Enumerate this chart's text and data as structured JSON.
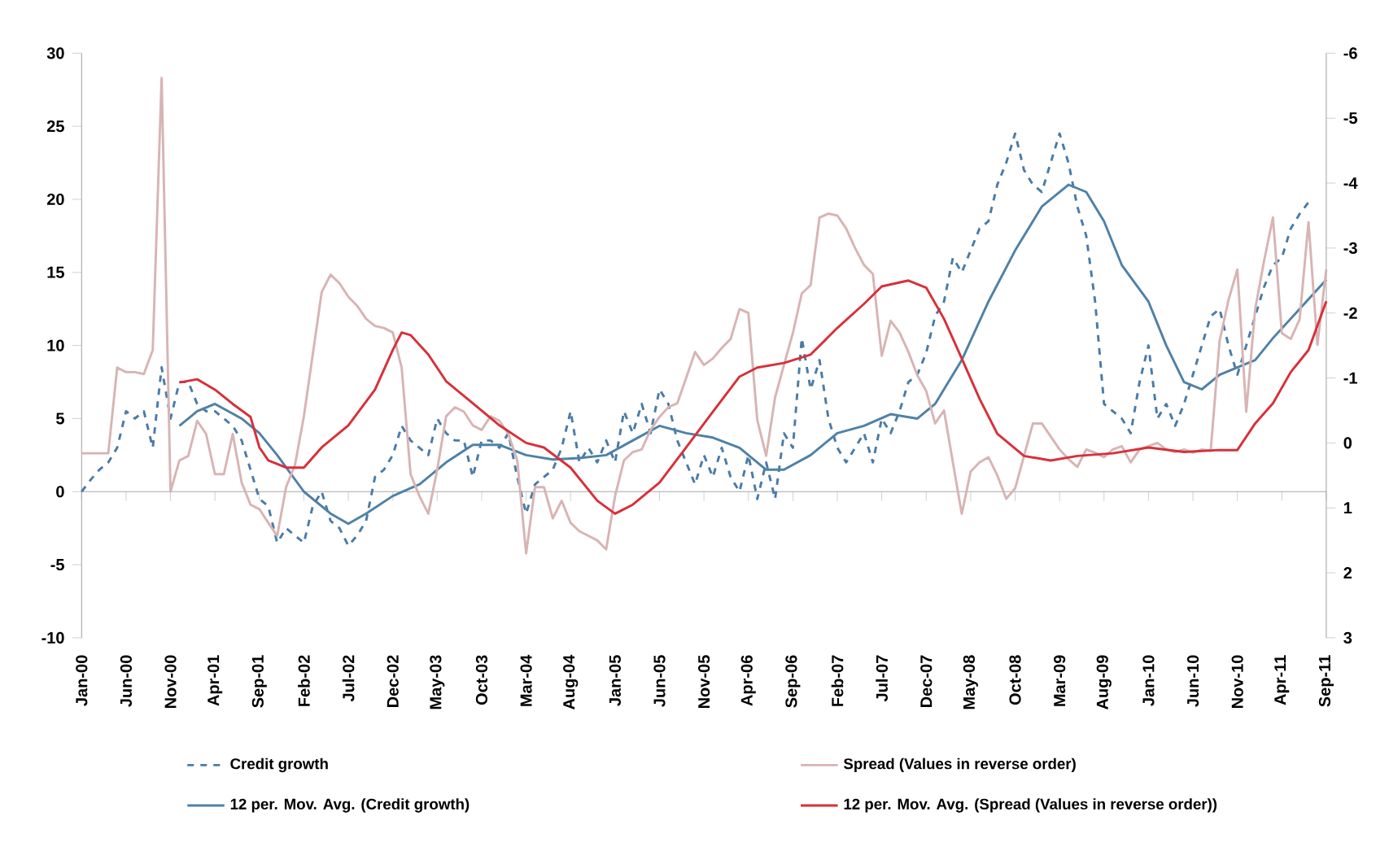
{
  "chart_data": {
    "type": "line",
    "legend": "bottom",
    "x": [
      "2000-01",
      "2000-02",
      "2000-03",
      "2000-04",
      "2000-05",
      "2000-06",
      "2000-07",
      "2000-08",
      "2000-09",
      "2000-10",
      "2000-11",
      "2000-12",
      "2001-01",
      "2001-02",
      "2001-03",
      "2001-04",
      "2001-05",
      "2001-06",
      "2001-07",
      "2001-08",
      "2001-09",
      "2001-10",
      "2001-11",
      "2001-12",
      "2002-01",
      "2002-02",
      "2002-03",
      "2002-04",
      "2002-05",
      "2002-06",
      "2002-07",
      "2002-08",
      "2002-09",
      "2002-10",
      "2002-11",
      "2002-12",
      "2003-01",
      "2003-02",
      "2003-03",
      "2003-04",
      "2003-05",
      "2003-06",
      "2003-07",
      "2003-08",
      "2003-09",
      "2003-10",
      "2003-11",
      "2003-12",
      "2004-01",
      "2004-02",
      "2004-03",
      "2004-04",
      "2004-05",
      "2004-06",
      "2004-07",
      "2004-08",
      "2004-09",
      "2004-10",
      "2004-11",
      "2004-12",
      "2005-01",
      "2005-02",
      "2005-03",
      "2005-04",
      "2005-05",
      "2005-06",
      "2005-07",
      "2005-08",
      "2005-09",
      "2005-10",
      "2005-11",
      "2005-12",
      "2006-01",
      "2006-02",
      "2006-03",
      "2006-04",
      "2006-05",
      "2006-06",
      "2006-07",
      "2006-08",
      "2006-09",
      "2006-10",
      "2006-11",
      "2006-12",
      "2007-01",
      "2007-02",
      "2007-03",
      "2007-04",
      "2007-05",
      "2007-06",
      "2007-07",
      "2007-08",
      "2007-09",
      "2007-10",
      "2007-11",
      "2007-12",
      "2008-01",
      "2008-02",
      "2008-03",
      "2008-04",
      "2008-05",
      "2008-06",
      "2008-07",
      "2008-08",
      "2008-09",
      "2008-10",
      "2008-11",
      "2008-12",
      "2009-01",
      "2009-02",
      "2009-03",
      "2009-04",
      "2009-05",
      "2009-06",
      "2009-07",
      "2009-08",
      "2009-09",
      "2009-10",
      "2009-11",
      "2009-12",
      "2010-01",
      "2010-02",
      "2010-03",
      "2010-04",
      "2010-05",
      "2010-06",
      "2010-07",
      "2010-08",
      "2010-09",
      "2010-10",
      "2010-11",
      "2010-12",
      "2011-01",
      "2011-02",
      "2011-03",
      "2011-04",
      "2011-05",
      "2011-06",
      "2011-07",
      "2011-08",
      "2011-09"
    ],
    "xlim": [
      "2000-01",
      "2011-09"
    ],
    "xticks": [
      {
        "value": "2000-01",
        "label": "Jan-00"
      },
      {
        "value": "2000-06",
        "label": "Jun-00"
      },
      {
        "value": "2000-11",
        "label": "Nov-00"
      },
      {
        "value": "2001-04",
        "label": "Apr-01"
      },
      {
        "value": "2001-09",
        "label": "Sep-01"
      },
      {
        "value": "2002-02",
        "label": "Feb-02"
      },
      {
        "value": "2002-07",
        "label": "Jul-02"
      },
      {
        "value": "2002-12",
        "label": "Dec-02"
      },
      {
        "value": "2003-05",
        "label": "May-03"
      },
      {
        "value": "2003-10",
        "label": "Oct-03"
      },
      {
        "value": "2004-03",
        "label": "Mar-04"
      },
      {
        "value": "2004-08",
        "label": "Aug-04"
      },
      {
        "value": "2005-01",
        "label": "Jan-05"
      },
      {
        "value": "2005-06",
        "label": "Jun-05"
      },
      {
        "value": "2005-11",
        "label": "Nov-05"
      },
      {
        "value": "2006-04",
        "label": "Apr-06"
      },
      {
        "value": "2006-09",
        "label": "Sep-06"
      },
      {
        "value": "2007-02",
        "label": "Feb-07"
      },
      {
        "value": "2007-07",
        "label": "Jul-07"
      },
      {
        "value": "2007-12",
        "label": "Dec-07"
      },
      {
        "value": "2008-05",
        "label": "May-08"
      },
      {
        "value": "2008-10",
        "label": "Oct-08"
      },
      {
        "value": "2009-03",
        "label": "Mar-09"
      },
      {
        "value": "2009-08",
        "label": "Aug-09"
      },
      {
        "value": "2010-01",
        "label": "Jan-10"
      },
      {
        "value": "2010-06",
        "label": "Jun-10"
      },
      {
        "value": "2010-11",
        "label": "Nov-10"
      },
      {
        "value": "2011-04",
        "label": "Apr-11"
      },
      {
        "value": "2011-09",
        "label": "Sep-11"
      }
    ],
    "ylim": [
      -10,
      30
    ],
    "yticks": [
      -10,
      -5,
      0,
      5,
      10,
      15,
      20,
      25,
      30
    ],
    "y2lim": [
      3,
      -6
    ],
    "y2ticks": [
      -6,
      -5,
      -4,
      -3,
      -2,
      -1,
      0,
      1,
      2,
      3
    ],
    "series": [
      {
        "name": "Credit growth",
        "color": "#4a7ba6",
        "line_style": "dashed",
        "values": [
          0,
          0.8,
          1.5,
          2,
          3,
          5.5,
          5,
          5.5,
          3,
          8.5,
          5,
          7.5,
          7.5,
          6,
          5.5,
          5.5,
          5,
          4.5,
          3.5,
          1.5,
          -0.5,
          -1,
          -3.5,
          -2.5,
          -3,
          -3.5,
          -1,
          0,
          -2,
          -2.5,
          -3.7,
          -3,
          -2,
          1,
          1.5,
          2.5,
          4.5,
          3.5,
          3,
          2.5,
          5,
          4,
          3.5,
          3.5,
          1,
          3.5,
          3.5,
          3,
          4,
          1,
          -1.5,
          0.5,
          1,
          1.5,
          3,
          5.5,
          2,
          3,
          2,
          3.5,
          2,
          5.5,
          4,
          6,
          4,
          7,
          6,
          3.5,
          2,
          0.5,
          2.5,
          1,
          3,
          1,
          0,
          2.5,
          -0.5,
          2,
          -0.5,
          4,
          3,
          10.5,
          7,
          9,
          5,
          3,
          2,
          3,
          4,
          2,
          5,
          4,
          5.5,
          7.5,
          8,
          9.5,
          12,
          13,
          16,
          15,
          16.5,
          18,
          18.5,
          21,
          22.5,
          24.5,
          22,
          21,
          20.5,
          22.5,
          24.5,
          22.5,
          19.5,
          17.5,
          13,
          6,
          5.5,
          5,
          4,
          7.5,
          10,
          5,
          6,
          4.5,
          6,
          8,
          10,
          12,
          12.5,
          10,
          8,
          10,
          12,
          14,
          15.5,
          16,
          18,
          19,
          19.8,
          null,
          null
        ]
      },
      {
        "name": "Spread (Values in reverse order)",
        "color": "#d8b4b4",
        "axis": "y2",
        "values": [
          0.16,
          0.16,
          0.16,
          0.16,
          -1.16,
          -1.09,
          -1.09,
          -1.06,
          -1.43,
          -5.62,
          0.75,
          0.27,
          0.2,
          -0.34,
          -0.14,
          0.48,
          0.48,
          -0.14,
          0.61,
          0.95,
          1.02,
          1.23,
          1.43,
          0.68,
          0.34,
          -0.41,
          -1.36,
          -2.32,
          -2.59,
          -2.46,
          -2.25,
          -2.11,
          -1.91,
          -1.8,
          -1.77,
          -1.7,
          -1.16,
          0.48,
          0.82,
          1.09,
          0.41,
          -0.41,
          -0.55,
          -0.48,
          -0.27,
          -0.2,
          -0.41,
          -0.34,
          -0.14,
          0.27,
          1.7,
          0.68,
          0.68,
          1.16,
          0.89,
          1.23,
          1.36,
          1.43,
          1.5,
          1.64,
          0.82,
          0.27,
          0.14,
          0.1,
          -0.2,
          -0.4,
          -0.55,
          -0.61,
          -1.0,
          -1.4,
          -1.2,
          -1.3,
          -1.46,
          -1.6,
          -2.06,
          -2.0,
          -0.35,
          0.2,
          -0.7,
          -1.2,
          -1.69,
          -2.3,
          -2.43,
          -3.47,
          -3.53,
          -3.5,
          -3.3,
          -3.0,
          -2.74,
          -2.6,
          -1.34,
          -1.88,
          -1.7,
          -1.4,
          -1.04,
          -0.8,
          -0.3,
          -0.5,
          0.3,
          1.09,
          0.44,
          0.3,
          0.22,
          0.5,
          0.86,
          0.7,
          0.2,
          -0.3,
          -0.3,
          -0.1,
          0.1,
          0.25,
          0.37,
          0.1,
          0.15,
          0.22,
          0.1,
          0.05,
          0.3,
          0.1,
          0.05,
          0,
          0.1,
          0.14,
          0.1,
          0.15,
          0.1,
          0.12,
          -1.57,
          -2.2,
          -2.67,
          -0.48,
          -2.06,
          -2.8,
          -3.47,
          -1.69,
          -1.6,
          -1.9,
          -3.4,
          -1.51,
          -2.67
        ]
      },
      {
        "name": "12 per. Mov. Avg. (Credit growth)",
        "color": "#4f81a6",
        "x": [
          "2000-12",
          "2001-02",
          "2001-04",
          "2001-07",
          "2001-09",
          "2001-11",
          "2002-02",
          "2002-05",
          "2002-07",
          "2002-09",
          "2002-12",
          "2003-03",
          "2003-06",
          "2003-09",
          "2003-12",
          "2004-03",
          "2004-06",
          "2004-09",
          "2004-12",
          "2005-03",
          "2005-06",
          "2005-09",
          "2005-12",
          "2006-03",
          "2006-06",
          "2006-08",
          "2006-11",
          "2007-02",
          "2007-05",
          "2007-08",
          "2007-11",
          "2008-01",
          "2008-04",
          "2008-07",
          "2008-10",
          "2009-01",
          "2009-04",
          "2009-06",
          "2009-08",
          "2009-10",
          "2010-01",
          "2010-03",
          "2010-05",
          "2010-07",
          "2010-09",
          "2010-11",
          "2011-01",
          "2011-03",
          "2011-06",
          "2011-09"
        ],
        "values": [
          4.5,
          5.5,
          6,
          5,
          4,
          2.5,
          0,
          -1.5,
          -2.2,
          -1.5,
          -0.3,
          0.5,
          2,
          3.2,
          3.2,
          2.5,
          2.2,
          2.3,
          2.5,
          3.5,
          4.5,
          4,
          3.7,
          3,
          1.5,
          1.5,
          2.5,
          4,
          4.5,
          5.3,
          5,
          6,
          9,
          13,
          16.5,
          19.5,
          21,
          20.5,
          18.5,
          15.5,
          13,
          10,
          7.5,
          7,
          8,
          8.5,
          9,
          10.5,
          12.5,
          14.5
        ]
      },
      {
        "name": "12 per. Mov. Avg. (Spread (Values in reverse order))",
        "color": "#d7303a",
        "axis": "y2",
        "x": [
          "2000-12",
          "2001-02",
          "2001-04",
          "2001-06",
          "2001-08",
          "2001-09",
          "2001-10",
          "2001-12",
          "2002-02",
          "2002-04",
          "2002-07",
          "2002-10",
          "2002-12",
          "2003-01",
          "2003-02",
          "2003-04",
          "2003-06",
          "2003-09",
          "2003-12",
          "2004-03",
          "2004-05",
          "2004-08",
          "2004-11",
          "2005-01",
          "2005-03",
          "2005-06",
          "2005-09",
          "2005-12",
          "2006-03",
          "2006-05",
          "2006-08",
          "2006-11",
          "2007-02",
          "2007-05",
          "2007-07",
          "2007-10",
          "2007-12",
          "2008-02",
          "2008-04",
          "2008-06",
          "2008-08",
          "2008-11",
          "2009-02",
          "2009-05",
          "2009-09",
          "2010-01",
          "2010-05",
          "2010-09",
          "2010-11",
          "2011-01",
          "2011-03",
          "2011-05",
          "2011-07",
          "2011-09"
        ],
        "values": [
          -0.93,
          -0.98,
          -0.82,
          -0.6,
          -0.4,
          0.07,
          0.27,
          0.38,
          0.38,
          0.07,
          -0.27,
          -0.82,
          -1.43,
          -1.7,
          -1.66,
          -1.36,
          -0.95,
          -0.61,
          -0.27,
          0,
          0.07,
          0.38,
          0.89,
          1.09,
          0.95,
          0.61,
          0.07,
          -0.48,
          -1.02,
          -1.16,
          -1.23,
          -1.36,
          -1.77,
          -2.14,
          -2.41,
          -2.5,
          -2.39,
          -1.91,
          -1.3,
          -0.68,
          -0.14,
          0.2,
          0.27,
          0.2,
          0.16,
          0.07,
          0.14,
          0.11,
          0.11,
          -0.3,
          -0.61,
          -1.09,
          -1.43,
          -2.18
        ]
      }
    ]
  }
}
